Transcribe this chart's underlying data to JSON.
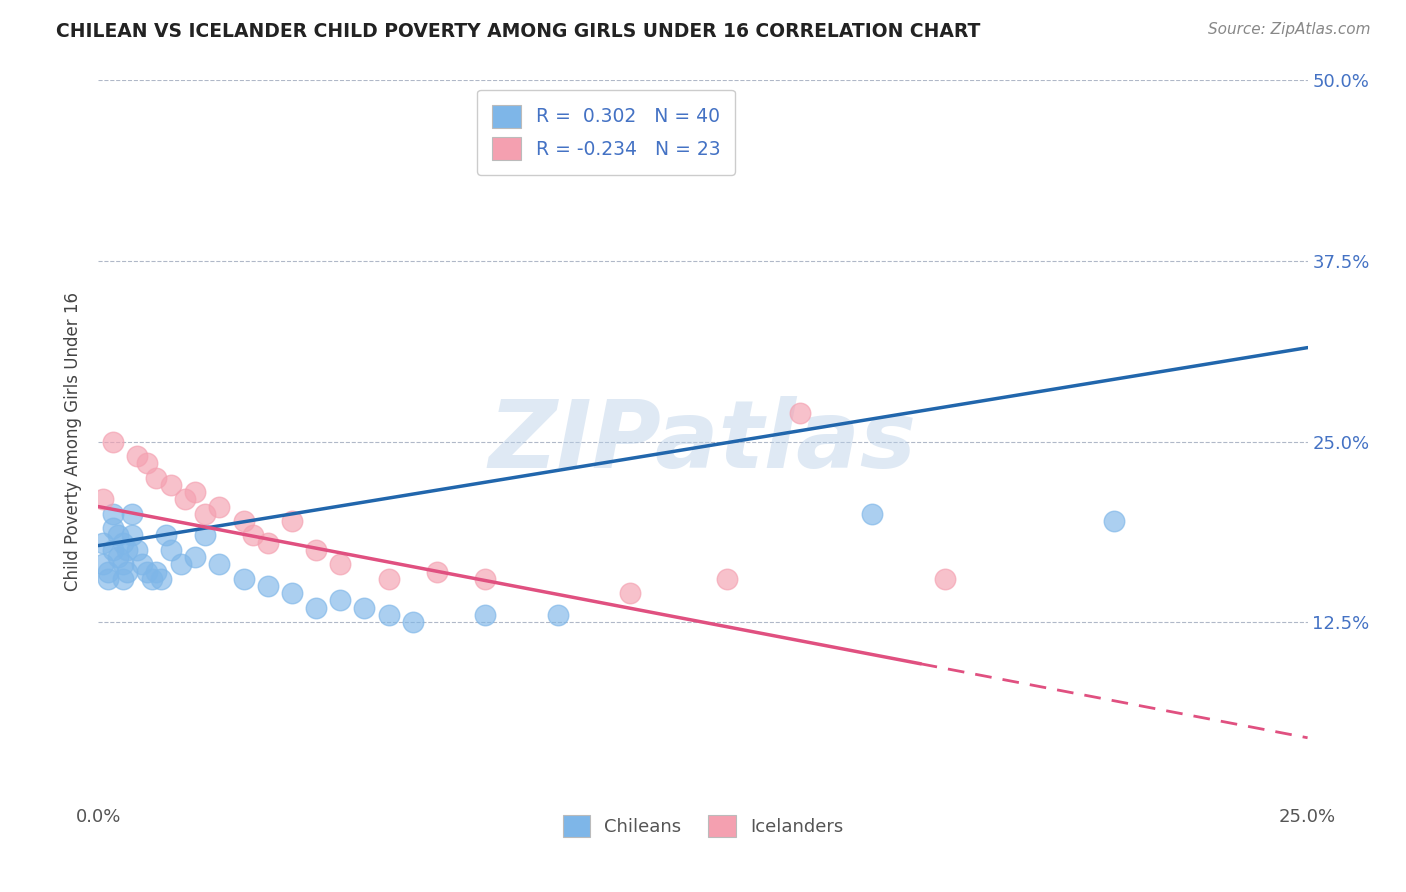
{
  "title": "CHILEAN VS ICELANDER CHILD POVERTY AMONG GIRLS UNDER 16 CORRELATION CHART",
  "source": "Source: ZipAtlas.com",
  "xmin": 0.0,
  "xmax": 0.25,
  "ymin": 0.0,
  "ymax": 0.5,
  "yticks": [
    0.125,
    0.25,
    0.375,
    0.5
  ],
  "ytick_labels": [
    "12.5%",
    "25.0%",
    "37.5%",
    "50.0%"
  ],
  "xticks": [
    0.0,
    0.25
  ],
  "xtick_labels": [
    "0.0%",
    "25.0%"
  ],
  "chilean_R": 0.302,
  "chilean_N": 40,
  "icelander_R": -0.234,
  "icelander_N": 23,
  "chilean_color": "#7eb6e8",
  "icelander_color": "#f4a0b0",
  "chilean_line_color": "#2166ac",
  "icelander_line_color": "#e05080",
  "watermark_text": "ZIPatlas",
  "legend_label_1": "Chileans",
  "legend_label_2": "Icelanders",
  "chilean_x": [
    0.001,
    0.001,
    0.002,
    0.002,
    0.003,
    0.003,
    0.003,
    0.004,
    0.004,
    0.005,
    0.005,
    0.005,
    0.006,
    0.006,
    0.007,
    0.007,
    0.008,
    0.009,
    0.01,
    0.011,
    0.012,
    0.013,
    0.014,
    0.015,
    0.017,
    0.02,
    0.022,
    0.025,
    0.03,
    0.035,
    0.04,
    0.045,
    0.05,
    0.055,
    0.06,
    0.065,
    0.08,
    0.095,
    0.16,
    0.21
  ],
  "chilean_y": [
    0.18,
    0.165,
    0.16,
    0.155,
    0.2,
    0.19,
    0.175,
    0.185,
    0.17,
    0.18,
    0.165,
    0.155,
    0.175,
    0.16,
    0.2,
    0.185,
    0.175,
    0.165,
    0.16,
    0.155,
    0.16,
    0.155,
    0.185,
    0.175,
    0.165,
    0.17,
    0.185,
    0.165,
    0.155,
    0.15,
    0.145,
    0.135,
    0.14,
    0.135,
    0.13,
    0.125,
    0.13,
    0.13,
    0.2,
    0.195
  ],
  "icelander_x": [
    0.001,
    0.003,
    0.008,
    0.01,
    0.012,
    0.015,
    0.018,
    0.02,
    0.022,
    0.025,
    0.03,
    0.032,
    0.035,
    0.04,
    0.045,
    0.05,
    0.06,
    0.07,
    0.08,
    0.11,
    0.13,
    0.145,
    0.175
  ],
  "icelander_y": [
    0.21,
    0.25,
    0.24,
    0.235,
    0.225,
    0.22,
    0.21,
    0.215,
    0.2,
    0.205,
    0.195,
    0.185,
    0.18,
    0.195,
    0.175,
    0.165,
    0.155,
    0.16,
    0.155,
    0.145,
    0.155,
    0.27,
    0.155
  ],
  "dot_size": 220,
  "chilean_line_x0": 0.0,
  "chilean_line_y0": 0.178,
  "chilean_line_x1": 0.25,
  "chilean_line_y1": 0.315,
  "icelander_line_x0": 0.0,
  "icelander_line_y0": 0.205,
  "icelander_line_x1": 0.25,
  "icelander_line_y1": 0.045
}
